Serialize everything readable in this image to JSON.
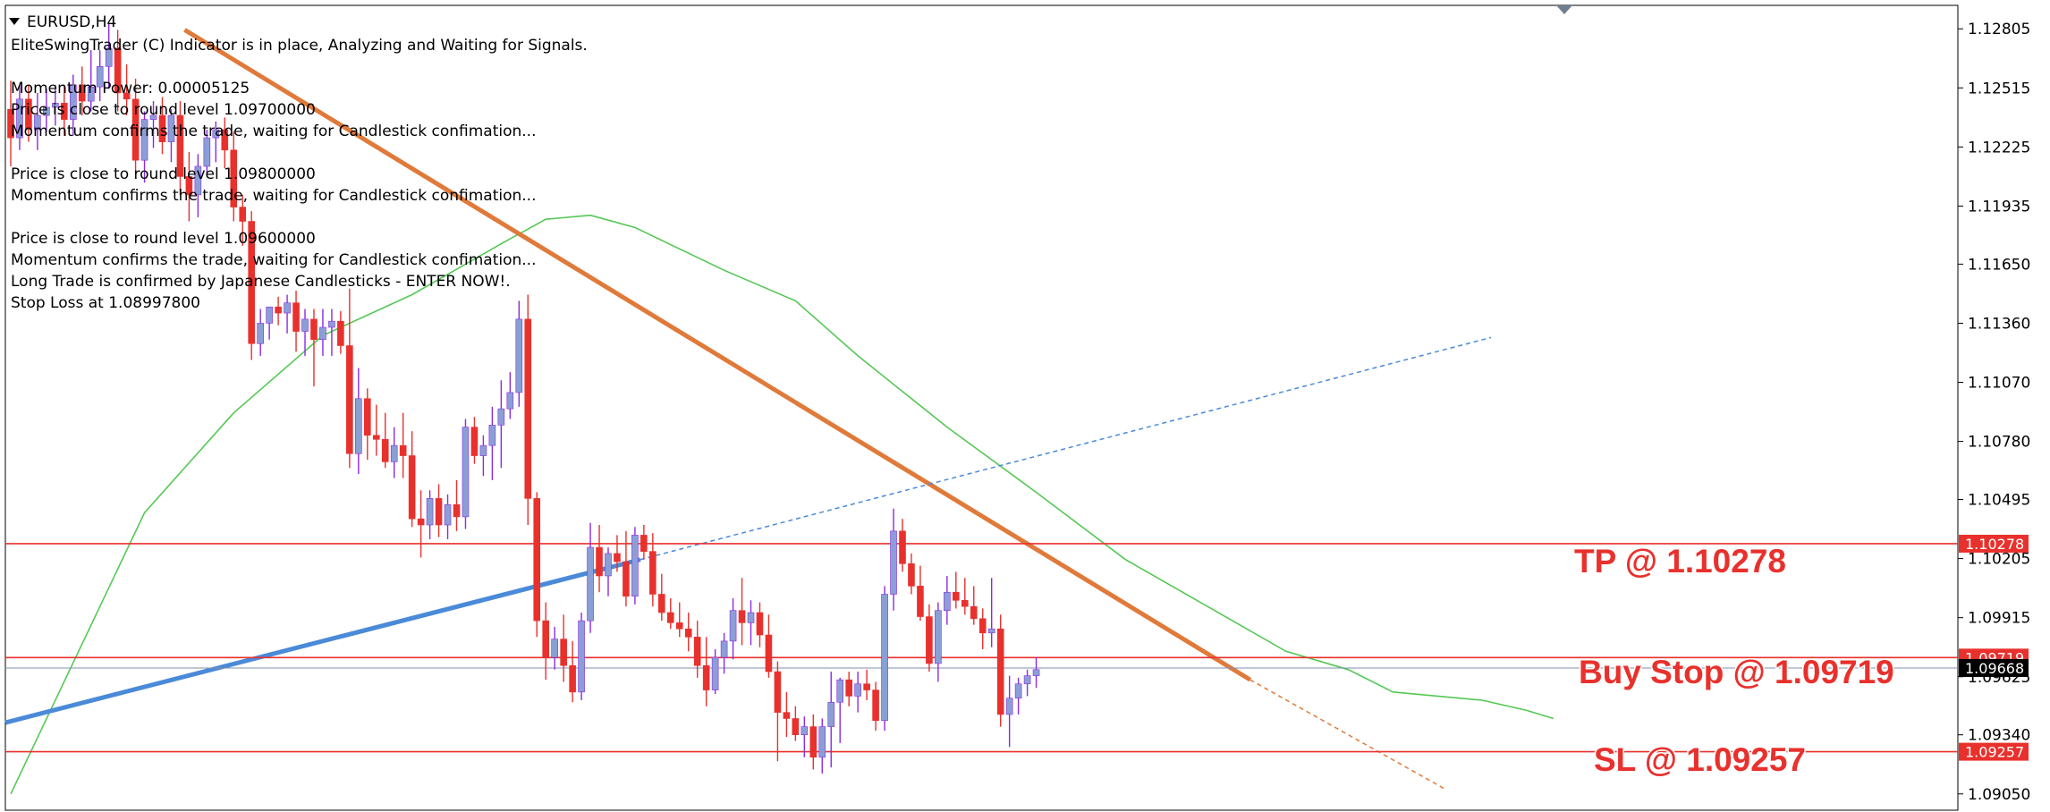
{
  "window": {
    "symbol_timeframe": "EURUSD,H4"
  },
  "indicator_messages": [
    "EliteSwingTrader (C) Indicator is in place, Analyzing and Waiting for Signals.",
    "",
    "Momentum Power: 0.00005125",
    "Price is close to round level 1.09700000",
    "Momentum confirms the trade, waiting for Candlestick confimation...",
    "",
    "Price is close to round level 1.09800000",
    "Momentum confirms the trade, waiting for Candlestick confimation...",
    "",
    "Price is close to round level 1.09600000",
    "Momentum confirms the trade, waiting for Candlestick confimation...",
    "Long Trade is confirmed by Japanese Candlesticks - ENTER NOW!.",
    "Stop Loss at 1.08997800"
  ],
  "price_axis": {
    "ticks": [
      "1.12805",
      "1.12515",
      "1.12225",
      "1.11935",
      "1.11650",
      "1.11360",
      "1.11070",
      "1.10780",
      "1.10495",
      "1.10205",
      "1.09915",
      "1.09625",
      "1.09340",
      "1.09050"
    ],
    "range": [
      1.0897,
      1.1292
    ]
  },
  "levels": [
    {
      "name": "tp",
      "price": 1.10278,
      "tag": "1.10278",
      "label": "TP @ 1.10278",
      "color": "#e8312d"
    },
    {
      "name": "buy-stop",
      "price": 1.09719,
      "tag": "1.09719",
      "label": "Buy Stop @ 1.09719",
      "color": "#e8312d"
    },
    {
      "name": "sl",
      "price": 1.09257,
      "tag": "1.09257",
      "label": "SL @ 1.09257",
      "color": "#e8312d"
    }
  ],
  "current_price": {
    "price": 1.09668,
    "tag": "1.09668",
    "color": "#000000"
  },
  "colors": {
    "bull": "#8a9fd6",
    "bear": "#e8312d",
    "wick_bull": "#8a2be2",
    "wick_bear": "#e8312d",
    "ma": "#55c855",
    "downtrend": "#e07a3a",
    "uptrend": "#4a8ad8"
  },
  "chart_data": {
    "type": "candlestick",
    "series_name": "EURUSD,H4",
    "y_range": [
      1.0897,
      1.1292
    ],
    "candles": [
      {
        "o": 1.1241,
        "h": 1.1255,
        "l": 1.1213,
        "c": 1.1227
      },
      {
        "o": 1.1227,
        "h": 1.1253,
        "l": 1.1221,
        "c": 1.1246
      },
      {
        "o": 1.1246,
        "h": 1.1253,
        "l": 1.1225,
        "c": 1.1231
      },
      {
        "o": 1.1231,
        "h": 1.1249,
        "l": 1.1221,
        "c": 1.1238
      },
      {
        "o": 1.1238,
        "h": 1.1251,
        "l": 1.123,
        "c": 1.1242
      },
      {
        "o": 1.1242,
        "h": 1.1253,
        "l": 1.1233,
        "c": 1.1244
      },
      {
        "o": 1.1244,
        "h": 1.1253,
        "l": 1.1228,
        "c": 1.1236
      },
      {
        "o": 1.1236,
        "h": 1.1258,
        "l": 1.1228,
        "c": 1.1253
      },
      {
        "o": 1.1253,
        "h": 1.1262,
        "l": 1.1238,
        "c": 1.1245
      },
      {
        "o": 1.1245,
        "h": 1.127,
        "l": 1.124,
        "c": 1.1252
      },
      {
        "o": 1.1252,
        "h": 1.127,
        "l": 1.1245,
        "c": 1.1262
      },
      {
        "o": 1.1262,
        "h": 1.1283,
        "l": 1.1251,
        "c": 1.1271
      },
      {
        "o": 1.1271,
        "h": 1.128,
        "l": 1.124,
        "c": 1.1249
      },
      {
        "o": 1.1249,
        "h": 1.1263,
        "l": 1.1238,
        "c": 1.1246
      },
      {
        "o": 1.1246,
        "h": 1.1256,
        "l": 1.1209,
        "c": 1.1216
      },
      {
        "o": 1.1216,
        "h": 1.124,
        "l": 1.1205,
        "c": 1.1236
      },
      {
        "o": 1.1236,
        "h": 1.1245,
        "l": 1.1222,
        "c": 1.1238
      },
      {
        "o": 1.1238,
        "h": 1.1247,
        "l": 1.1219,
        "c": 1.1225
      },
      {
        "o": 1.1225,
        "h": 1.1241,
        "l": 1.1215,
        "c": 1.1238
      },
      {
        "o": 1.1238,
        "h": 1.1245,
        "l": 1.1199,
        "c": 1.1208
      },
      {
        "o": 1.1208,
        "h": 1.122,
        "l": 1.1186,
        "c": 1.1199
      },
      {
        "o": 1.1199,
        "h": 1.1219,
        "l": 1.1188,
        "c": 1.1213
      },
      {
        "o": 1.1213,
        "h": 1.1231,
        "l": 1.1209,
        "c": 1.1227
      },
      {
        "o": 1.1227,
        "h": 1.1235,
        "l": 1.1215,
        "c": 1.1231
      },
      {
        "o": 1.1231,
        "h": 1.1237,
        "l": 1.1212,
        "c": 1.1221
      },
      {
        "o": 1.1221,
        "h": 1.123,
        "l": 1.1186,
        "c": 1.1193
      },
      {
        "o": 1.1193,
        "h": 1.1199,
        "l": 1.1174,
        "c": 1.1186
      },
      {
        "o": 1.1186,
        "h": 1.1191,
        "l": 1.1118,
        "c": 1.1126
      },
      {
        "o": 1.1126,
        "h": 1.1143,
        "l": 1.112,
        "c": 1.1136
      },
      {
        "o": 1.1136,
        "h": 1.1144,
        "l": 1.1128,
        "c": 1.1144
      },
      {
        "o": 1.1144,
        "h": 1.1149,
        "l": 1.1135,
        "c": 1.1141
      },
      {
        "o": 1.1141,
        "h": 1.115,
        "l": 1.1131,
        "c": 1.1146
      },
      {
        "o": 1.1146,
        "h": 1.1152,
        "l": 1.1122,
        "c": 1.1132
      },
      {
        "o": 1.1132,
        "h": 1.1143,
        "l": 1.112,
        "c": 1.1138
      },
      {
        "o": 1.1138,
        "h": 1.1143,
        "l": 1.1105,
        "c": 1.1128
      },
      {
        "o": 1.1128,
        "h": 1.1143,
        "l": 1.112,
        "c": 1.1134
      },
      {
        "o": 1.1134,
        "h": 1.1143,
        "l": 1.112,
        "c": 1.1137
      },
      {
        "o": 1.1137,
        "h": 1.1142,
        "l": 1.1121,
        "c": 1.1125
      },
      {
        "o": 1.1125,
        "h": 1.1153,
        "l": 1.1065,
        "c": 1.1072
      },
      {
        "o": 1.1072,
        "h": 1.1114,
        "l": 1.1062,
        "c": 1.1099
      },
      {
        "o": 1.1099,
        "h": 1.1104,
        "l": 1.1069,
        "c": 1.1081
      },
      {
        "o": 1.1081,
        "h": 1.1096,
        "l": 1.1071,
        "c": 1.1079
      },
      {
        "o": 1.1079,
        "h": 1.1092,
        "l": 1.1065,
        "c": 1.1068
      },
      {
        "o": 1.1068,
        "h": 1.1085,
        "l": 1.106,
        "c": 1.1076
      },
      {
        "o": 1.1076,
        "h": 1.1092,
        "l": 1.106,
        "c": 1.1071
      },
      {
        "o": 1.1071,
        "h": 1.1083,
        "l": 1.1036,
        "c": 1.104
      },
      {
        "o": 1.104,
        "h": 1.1054,
        "l": 1.1021,
        "c": 1.1037
      },
      {
        "o": 1.1037,
        "h": 1.1054,
        "l": 1.103,
        "c": 1.105
      },
      {
        "o": 1.105,
        "h": 1.1057,
        "l": 1.1031,
        "c": 1.1037
      },
      {
        "o": 1.1037,
        "h": 1.1052,
        "l": 1.103,
        "c": 1.1047
      },
      {
        "o": 1.1047,
        "h": 1.1059,
        "l": 1.1034,
        "c": 1.1041
      },
      {
        "o": 1.1041,
        "h": 1.1089,
        "l": 1.1035,
        "c": 1.1085
      },
      {
        "o": 1.1085,
        "h": 1.109,
        "l": 1.1067,
        "c": 1.1071
      },
      {
        "o": 1.1071,
        "h": 1.1081,
        "l": 1.1061,
        "c": 1.1076
      },
      {
        "o": 1.1076,
        "h": 1.1095,
        "l": 1.1059,
        "c": 1.1086
      },
      {
        "o": 1.1086,
        "h": 1.1108,
        "l": 1.1065,
        "c": 1.1094
      },
      {
        "o": 1.1094,
        "h": 1.1112,
        "l": 1.1089,
        "c": 1.1102
      },
      {
        "o": 1.1102,
        "h": 1.1147,
        "l": 1.1095,
        "c": 1.1138
      },
      {
        "o": 1.1138,
        "h": 1.115,
        "l": 1.1037,
        "c": 1.105
      },
      {
        "o": 1.105,
        "h": 1.1053,
        "l": 1.0982,
        "c": 1.099
      },
      {
        "o": 1.099,
        "h": 1.0999,
        "l": 1.0961,
        "c": 1.0972
      },
      {
        "o": 1.0972,
        "h": 1.0987,
        "l": 1.0966,
        "c": 1.0981
      },
      {
        "o": 1.0981,
        "h": 1.0993,
        "l": 1.096,
        "c": 1.0968
      },
      {
        "o": 1.0968,
        "h": 1.098,
        "l": 1.095,
        "c": 1.0955
      },
      {
        "o": 1.0955,
        "h": 1.0994,
        "l": 1.0951,
        "c": 1.099
      },
      {
        "o": 1.099,
        "h": 1.1038,
        "l": 1.0984,
        "c": 1.1026
      },
      {
        "o": 1.1026,
        "h": 1.1037,
        "l": 1.1004,
        "c": 1.1012
      },
      {
        "o": 1.1012,
        "h": 1.1026,
        "l": 1.1002,
        "c": 1.1023
      },
      {
        "o": 1.1023,
        "h": 1.1032,
        "l": 1.1014,
        "c": 1.1019
      },
      {
        "o": 1.1019,
        "h": 1.1034,
        "l": 1.0997,
        "c": 1.1002
      },
      {
        "o": 1.1002,
        "h": 1.1036,
        "l": 1.0998,
        "c": 1.1032
      },
      {
        "o": 1.1032,
        "h": 1.1037,
        "l": 1.102,
        "c": 1.1024
      },
      {
        "o": 1.1024,
        "h": 1.1033,
        "l": 1.0997,
        "c": 1.1003
      },
      {
        "o": 1.1003,
        "h": 1.1013,
        "l": 1.099,
        "c": 1.0994
      },
      {
        "o": 1.0994,
        "h": 1.1001,
        "l": 1.0986,
        "c": 1.0989
      },
      {
        "o": 1.0989,
        "h": 1.0999,
        "l": 1.0982,
        "c": 1.0986
      },
      {
        "o": 1.0986,
        "h": 1.0994,
        "l": 1.0975,
        "c": 1.0982
      },
      {
        "o": 1.0982,
        "h": 1.099,
        "l": 1.0962,
        "c": 1.0968
      },
      {
        "o": 1.0968,
        "h": 1.0982,
        "l": 1.0948,
        "c": 1.0956
      },
      {
        "o": 1.0956,
        "h": 1.0976,
        "l": 1.0954,
        "c": 1.0972
      },
      {
        "o": 1.0972,
        "h": 1.0984,
        "l": 1.0964,
        "c": 1.098
      },
      {
        "o": 1.098,
        "h": 1.1001,
        "l": 1.0971,
        "c": 1.0995
      },
      {
        "o": 1.0995,
        "h": 1.1011,
        "l": 1.0978,
        "c": 1.0989
      },
      {
        "o": 1.0989,
        "h": 1.1,
        "l": 1.0978,
        "c": 1.0994
      },
      {
        "o": 1.0994,
        "h": 1.0999,
        "l": 1.0977,
        "c": 1.0983
      },
      {
        "o": 1.0983,
        "h": 1.0993,
        "l": 1.0962,
        "c": 1.0965
      },
      {
        "o": 1.0965,
        "h": 1.097,
        "l": 1.0921,
        "c": 1.0945
      },
      {
        "o": 1.0945,
        "h": 1.0955,
        "l": 1.0933,
        "c": 1.0942
      },
      {
        "o": 1.0942,
        "h": 1.0948,
        "l": 1.0931,
        "c": 1.0934
      },
      {
        "o": 1.0934,
        "h": 1.0943,
        "l": 1.0923,
        "c": 1.0938
      },
      {
        "o": 1.0938,
        "h": 1.0944,
        "l": 1.0917,
        "c": 1.0923
      },
      {
        "o": 1.0923,
        "h": 1.0942,
        "l": 1.0915,
        "c": 1.0938
      },
      {
        "o": 1.0938,
        "h": 1.0965,
        "l": 1.0918,
        "c": 1.095
      },
      {
        "o": 1.095,
        "h": 1.0962,
        "l": 1.093,
        "c": 1.0961
      },
      {
        "o": 1.0961,
        "h": 1.0965,
        "l": 1.0948,
        "c": 1.0953
      },
      {
        "o": 1.0953,
        "h": 1.0965,
        "l": 1.0945,
        "c": 1.0959
      },
      {
        "o": 1.0959,
        "h": 1.0966,
        "l": 1.0951,
        "c": 1.0956
      },
      {
        "o": 1.0956,
        "h": 1.096,
        "l": 1.0936,
        "c": 1.0941
      },
      {
        "o": 1.0941,
        "h": 1.1007,
        "l": 1.0936,
        "c": 1.1003
      },
      {
        "o": 1.1003,
        "h": 1.1045,
        "l": 1.0995,
        "c": 1.1034
      },
      {
        "o": 1.1034,
        "h": 1.104,
        "l": 1.1014,
        "c": 1.1018
      },
      {
        "o": 1.1018,
        "h": 1.1023,
        "l": 1.1003,
        "c": 1.1007
      },
      {
        "o": 1.1007,
        "h": 1.1017,
        "l": 1.099,
        "c": 1.0992
      },
      {
        "o": 1.0992,
        "h": 1.0998,
        "l": 1.0965,
        "c": 1.0969
      },
      {
        "o": 1.0969,
        "h": 1.0999,
        "l": 1.096,
        "c": 1.0995
      },
      {
        "o": 1.0995,
        "h": 1.1012,
        "l": 1.0988,
        "c": 1.1004
      },
      {
        "o": 1.1004,
        "h": 1.1014,
        "l": 1.0996,
        "c": 1.1
      },
      {
        "o": 1.1,
        "h": 1.1011,
        "l": 1.0993,
        "c": 1.0997
      },
      {
        "o": 1.0997,
        "h": 1.1007,
        "l": 1.0988,
        "c": 1.0991
      },
      {
        "o": 1.0991,
        "h": 1.0996,
        "l": 1.0976,
        "c": 1.0984
      },
      {
        "o": 1.0984,
        "h": 1.1011,
        "l": 1.0977,
        "c": 1.0986
      },
      {
        "o": 1.0986,
        "h": 1.0993,
        "l": 1.0938,
        "c": 1.0944
      },
      {
        "o": 1.0944,
        "h": 1.0963,
        "l": 1.0928,
        "c": 1.0952
      },
      {
        "o": 1.0952,
        "h": 1.0962,
        "l": 1.0944,
        "c": 1.0959
      },
      {
        "o": 1.0959,
        "h": 1.0966,
        "l": 1.0953,
        "c": 1.0963
      },
      {
        "o": 1.0963,
        "h": 1.0972,
        "l": 1.0957,
        "c": 1.0966
      }
    ],
    "moving_average": [
      [
        0,
        1.0905
      ],
      [
        15,
        1.1043
      ],
      [
        25,
        1.1092
      ],
      [
        35,
        1.113
      ],
      [
        45,
        1.115
      ],
      [
        55,
        1.1175
      ],
      [
        60,
        1.1187
      ],
      [
        65,
        1.1189
      ],
      [
        70,
        1.1183
      ],
      [
        80,
        1.1162
      ],
      [
        88,
        1.1147
      ],
      [
        95,
        1.112
      ],
      [
        105,
        1.1085
      ],
      [
        115,
        1.1053
      ],
      [
        125,
        1.102
      ],
      [
        135,
        1.0995
      ],
      [
        143,
        1.0975
      ],
      [
        150,
        1.0966
      ],
      [
        155,
        1.0955
      ],
      [
        160,
        1.0953
      ],
      [
        165,
        1.0951
      ],
      [
        170,
        1.0946
      ],
      [
        173,
        1.0942
      ]
    ],
    "downtrend_line": {
      "from": [
        19.5,
        1.128
      ],
      "to": [
        139,
        1.0961
      ],
      "extension_to": [
        161,
        1.0907
      ]
    },
    "uptrend_line": {
      "from": [
        0,
        1.094
      ],
      "to": [
        70.6,
        1.102
      ],
      "extension_to": [
        166,
        1.1129
      ]
    }
  }
}
